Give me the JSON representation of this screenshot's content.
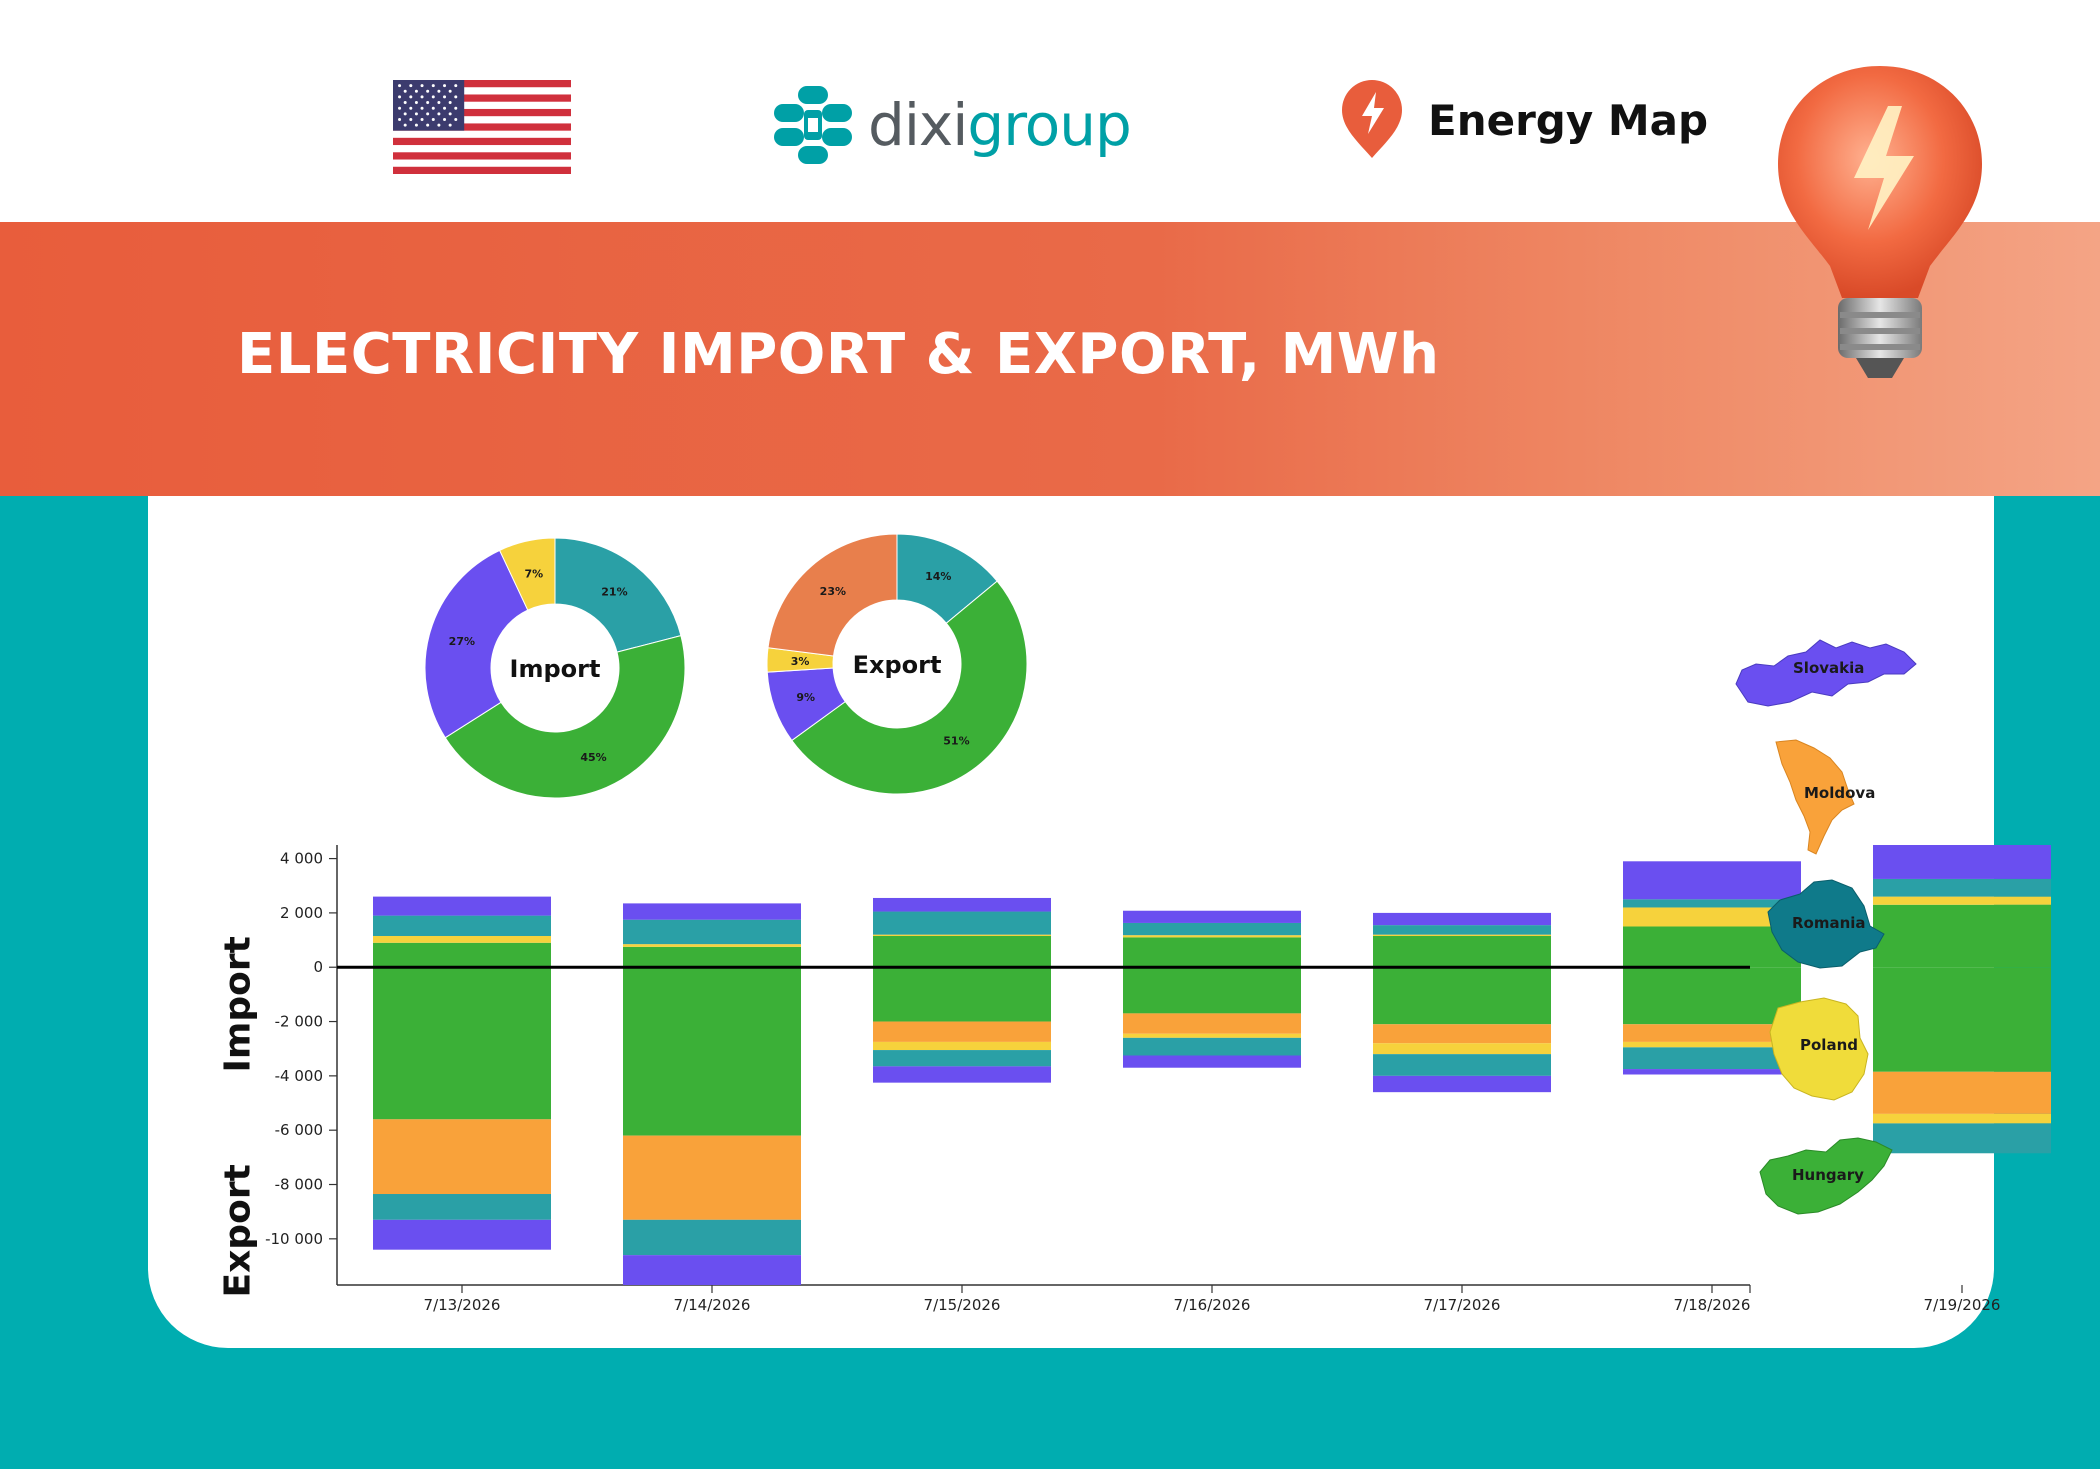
{
  "header": {
    "brand_prefix": "dixi",
    "brand_suffix": "group",
    "energy_map": "Energy Map"
  },
  "title": "ELECTRICITY IMPORT & EXPORT, MWh",
  "colors": {
    "Slovakia": "#6a4ff0",
    "Moldova": "#f9a23a",
    "Romania": "#1f8c9c",
    "Poland": "#f6d23c",
    "Hungary": "#3bb037",
    "export_other": "#e87f4c",
    "teal_seg": "#2aa0a6",
    "band": "#e85d3c",
    "background": "#00adb0"
  },
  "countries": [
    {
      "name": "Slovakia",
      "icon": "slovakia-map-icon"
    },
    {
      "name": "Moldova",
      "icon": "moldova-map-icon"
    },
    {
      "name": "Romania",
      "icon": "romania-map-icon"
    },
    {
      "name": "Poland",
      "icon": "poland-map-icon"
    },
    {
      "name": "Hungary",
      "icon": "hungary-map-icon"
    }
  ],
  "chart_data": [
    {
      "type": "pie",
      "title": "Import",
      "labels": [
        "Romania",
        "Hungary",
        "Slovakia",
        "Poland"
      ],
      "colors": [
        "#2aa0a6",
        "#3bb037",
        "#6a4ff0",
        "#f6d23c"
      ],
      "values": [
        21,
        45,
        27,
        7
      ],
      "value_labels": [
        "21%",
        "45%",
        "27%",
        "7%"
      ]
    },
    {
      "type": "pie",
      "title": "Export",
      "labels": [
        "Romania",
        "Hungary",
        "Slovakia",
        "Poland",
        "Moldova"
      ],
      "colors": [
        "#2aa0a6",
        "#3bb037",
        "#6a4ff0",
        "#f6d23c",
        "#e87f4c"
      ],
      "values": [
        14,
        51,
        9,
        3,
        23
      ],
      "value_labels": [
        "14%",
        "51%",
        "9%",
        "3%",
        "23%"
      ]
    },
    {
      "type": "bar",
      "stacked": true,
      "categories": [
        "7/13/2026",
        "7/14/2026",
        "7/15/2026",
        "7/16/2026",
        "7/17/2026",
        "7/18/2026",
        "7/19/2026"
      ],
      "ylabel_top": "Import",
      "ylabel_bottom": "Export",
      "ylim": [
        -11700,
        4500
      ],
      "yticks": [
        4000,
        2000,
        0,
        -2000,
        -4000,
        -6000,
        -8000,
        -10000
      ],
      "ytick_labels": [
        "4 000",
        "2 000",
        "0",
        "-2 000",
        "-4 000",
        "-6 000",
        "-8 000",
        "-10 000"
      ],
      "series": [
        {
          "name": "Hungary",
          "color": "#3bb037",
          "values": [
            900,
            750,
            1150,
            1100,
            1150,
            1500,
            2300
          ]
        },
        {
          "name": "Poland",
          "color": "#f6d23c",
          "values": [
            250,
            100,
            50,
            80,
            50,
            700,
            300
          ]
        },
        {
          "name": "Romania",
          "color": "#2aa0a6",
          "values": [
            750,
            900,
            850,
            450,
            350,
            300,
            650
          ]
        },
        {
          "name": "Slovakia",
          "color": "#6a4ff0",
          "values": [
            700,
            600,
            500,
            450,
            450,
            1400,
            1250
          ]
        }
      ],
      "export_series": [
        {
          "name": "Hungary",
          "color": "#3bb037",
          "values": [
            -5600,
            -6200,
            -2000,
            -1700,
            -2100,
            -2100,
            -3850
          ]
        },
        {
          "name": "Moldova",
          "color": "#f9a23a",
          "values": [
            -2750,
            -3100,
            -750,
            -750,
            -700,
            -650,
            -1550
          ]
        },
        {
          "name": "Poland",
          "color": "#f6d23c",
          "values": [
            0,
            0,
            -300,
            -150,
            -400,
            -200,
            -350
          ]
        },
        {
          "name": "Romania",
          "color": "#2aa0a6",
          "values": [
            -950,
            -1300,
            -600,
            -650,
            -800,
            -800,
            -1100
          ]
        },
        {
          "name": "Slovakia",
          "color": "#6a4ff0",
          "values": [
            -1100,
            -1100,
            -600,
            -450,
            -600,
            -200,
            0
          ]
        }
      ]
    }
  ]
}
